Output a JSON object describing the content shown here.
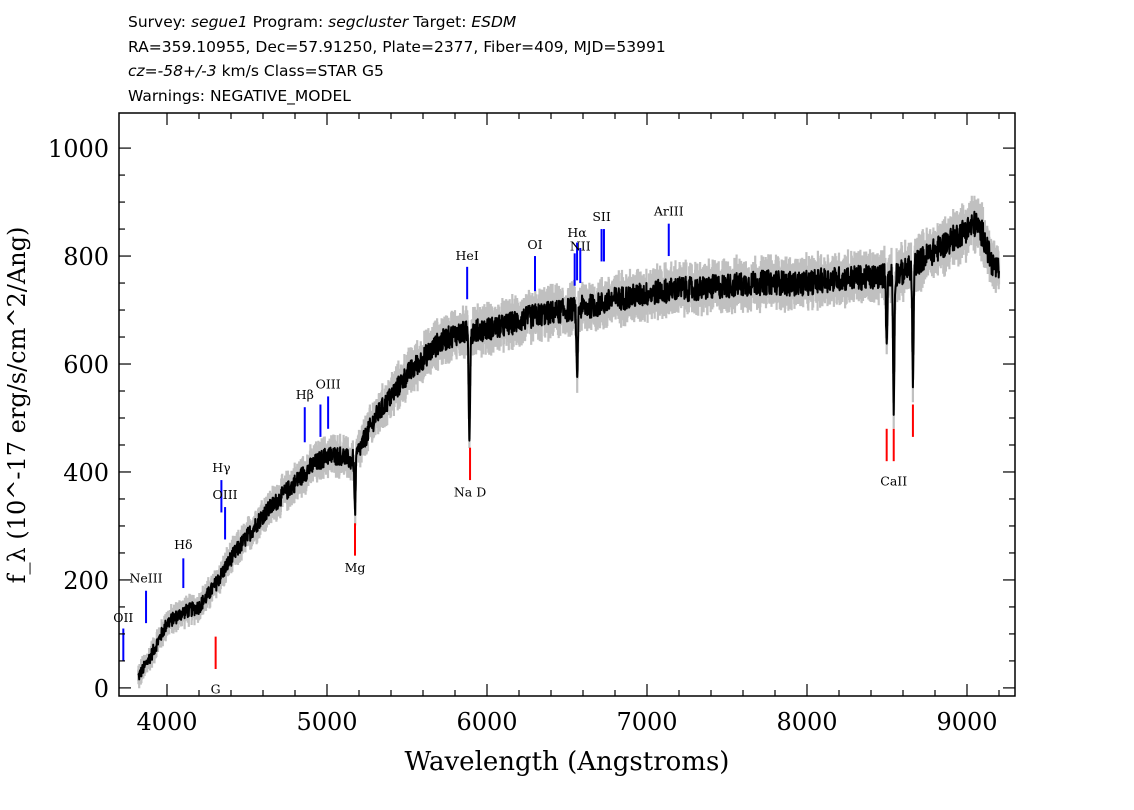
{
  "header": {
    "survey_label": "Survey:",
    "survey": "segue1",
    "program_label": "Program:",
    "program": "segcluster",
    "target_label": "Target:",
    "target": "ESDM",
    "line2": "RA=359.10955, Dec=57.91250, Plate=2377, Fiber=409, MJD=53991",
    "cz_label": "cz=",
    "cz_value": "-58+/-3",
    "cz_rest": " km/s Class=STAR G5",
    "warnings": "Warnings: NEGATIVE_MODEL"
  },
  "chart_data": {
    "type": "line",
    "title": "Survey: segue1 Program: segcluster Target: ESDM",
    "xlabel": "Wavelength (Angstroms)",
    "ylabel": "f_λ (10^-17 erg/s/cm^2/Ang)",
    "xlim": [
      3700,
      9300
    ],
    "ylim": [
      -15,
      1065
    ],
    "x_ticks": [
      4000,
      5000,
      6000,
      7000,
      8000,
      9000
    ],
    "y_ticks": [
      0,
      200,
      400,
      600,
      800,
      1000
    ],
    "x_tick_labels": [
      "4000",
      "5000",
      "6000",
      "7000",
      "8000",
      "9000"
    ],
    "y_tick_labels": [
      "0",
      "200",
      "400",
      "600",
      "800",
      "1000"
    ],
    "series": [
      {
        "name": "spectrum",
        "color": "#000000",
        "x": [
          3820,
          3900,
          4000,
          4100,
          4200,
          4300,
          4400,
          4500,
          4600,
          4700,
          4800,
          4900,
          5000,
          5100,
          5150,
          5200,
          5300,
          5400,
          5500,
          5600,
          5700,
          5800,
          5900,
          6000,
          6100,
          6200,
          6300,
          6400,
          6500,
          6600,
          6700,
          6800,
          6900,
          7000,
          7100,
          7200,
          7300,
          7400,
          7500,
          7600,
          7700,
          7800,
          7900,
          8000,
          8100,
          8200,
          8300,
          8400,
          8500,
          8600,
          8700,
          8800,
          8900,
          9000,
          9050,
          9100,
          9150,
          9200
        ],
        "y": [
          20,
          60,
          120,
          140,
          150,
          190,
          240,
          280,
          320,
          350,
          380,
          410,
          430,
          430,
          420,
          440,
          500,
          540,
          580,
          610,
          640,
          655,
          660,
          665,
          670,
          680,
          690,
          695,
          700,
          705,
          710,
          720,
          725,
          730,
          735,
          740,
          738,
          742,
          745,
          748,
          750,
          752,
          748,
          750,
          755,
          758,
          760,
          760,
          765,
          770,
          790,
          810,
          830,
          850,
          860,
          840,
          790,
          770
        ]
      },
      {
        "name": "model",
        "color": "#c0c0c0",
        "x": [
          3820,
          3900,
          4000,
          4100,
          4200,
          4300,
          4400,
          4500,
          4600,
          4700,
          4800,
          4900,
          5000,
          5100,
          5150,
          5200,
          5300,
          5400,
          5500,
          5600,
          5700,
          5800,
          5900,
          6000,
          6100,
          6200,
          6300,
          6400,
          6500,
          6600,
          6700,
          6800,
          6900,
          7000,
          7100,
          7200,
          7300,
          7400,
          7500,
          7600,
          7700,
          7800,
          7900,
          8000,
          8100,
          8200,
          8300,
          8400,
          8500,
          8600,
          8700,
          8800,
          8900,
          9000,
          9050,
          9100,
          9150,
          9200
        ],
        "y": [
          20,
          60,
          120,
          140,
          150,
          190,
          240,
          280,
          320,
          350,
          380,
          410,
          430,
          430,
          420,
          440,
          500,
          540,
          580,
          610,
          640,
          655,
          660,
          665,
          670,
          680,
          690,
          695,
          700,
          705,
          710,
          720,
          725,
          730,
          735,
          740,
          738,
          742,
          745,
          748,
          750,
          752,
          748,
          750,
          755,
          758,
          760,
          760,
          765,
          770,
          790,
          810,
          830,
          850,
          860,
          840,
          790,
          770
        ]
      }
    ],
    "absorption_features": [
      {
        "x": 5175,
        "y": 330
      },
      {
        "x": 5890,
        "y": 470
      },
      {
        "x": 6563,
        "y": 570
      },
      {
        "x": 8498,
        "y": 650
      },
      {
        "x": 8542,
        "y": 520
      },
      {
        "x": 8662,
        "y": 570
      }
    ],
    "line_markers": [
      {
        "label": "OII",
        "x": 3727,
        "y0": 50,
        "y1": 110,
        "color": "#0000ff",
        "label_y": 122
      },
      {
        "label": "NeIII",
        "x": 3869,
        "y0": 120,
        "y1": 180,
        "color": "#0000ff",
        "label_y": 195
      },
      {
        "label": "Hδ",
        "x": 4102,
        "y0": 185,
        "y1": 240,
        "color": "#0000ff",
        "label_y": 257
      },
      {
        "label": "Hγ",
        "x": 4340,
        "y0": 325,
        "y1": 385,
        "color": "#0000ff",
        "label_y": 400
      },
      {
        "label": "OIII",
        "x": 4363,
        "y0": 275,
        "y1": 335,
        "color": "#0000ff",
        "label_y": 350
      },
      {
        "label": "Hβ",
        "x": 4861,
        "y0": 455,
        "y1": 520,
        "color": "#0000ff",
        "label_y": 535
      },
      {
        "label": "OIII",
        "x": 4959,
        "y0": 465,
        "y1": 525,
        "color": "#0000ff",
        "label_y": 0
      },
      {
        "label": "OIII",
        "x": 5007,
        "y0": 480,
        "y1": 540,
        "color": "#0000ff",
        "label_y": 555
      },
      {
        "label": "HeI",
        "x": 5876,
        "y0": 720,
        "y1": 780,
        "color": "#0000ff",
        "label_y": 793
      },
      {
        "label": "OI",
        "x": 6300,
        "y0": 735,
        "y1": 800,
        "color": "#0000ff",
        "label_y": 813
      },
      {
        "label": "NII",
        "x": 6548,
        "y0": 745,
        "y1": 805,
        "color": "#0000ff",
        "label_y": 0
      },
      {
        "label": "Hα",
        "x": 6563,
        "y0": 755,
        "y1": 825,
        "color": "#0000ff",
        "label_y": 835
      },
      {
        "label": "NII",
        "x": 6583,
        "y0": 750,
        "y1": 815,
        "color": "#0000ff",
        "label_y": 810
      },
      {
        "label": "SII",
        "x": 6716,
        "y0": 790,
        "y1": 850,
        "color": "#0000ff",
        "label_y": 865
      },
      {
        "label": "SII",
        "x": 6731,
        "y0": 790,
        "y1": 850,
        "color": "#0000ff",
        "label_y": 0
      },
      {
        "label": "ArIII",
        "x": 7136,
        "y0": 800,
        "y1": 860,
        "color": "#0000ff",
        "label_y": 875
      },
      {
        "label": "G",
        "x": 4304,
        "y0": 35,
        "y1": 95,
        "color": "#ff0000",
        "label_y": -10
      },
      {
        "label": "Mg",
        "x": 5175,
        "y0": 245,
        "y1": 305,
        "color": "#ff0000",
        "label_y": 215
      },
      {
        "label": "Na D",
        "x": 5894,
        "y0": 385,
        "y1": 445,
        "color": "#ff0000",
        "label_y": 355
      },
      {
        "label": "CaII",
        "x": 8498,
        "y0": 420,
        "y1": 480,
        "color": "#ff0000",
        "label_y": 0
      },
      {
        "label": "CaII",
        "x": 8542,
        "y0": 420,
        "y1": 480,
        "color": "#ff0000",
        "label_y": 375
      },
      {
        "label": "CaII",
        "x": 8662,
        "y0": 465,
        "y1": 525,
        "color": "#ff0000",
        "label_y": 0
      }
    ]
  }
}
